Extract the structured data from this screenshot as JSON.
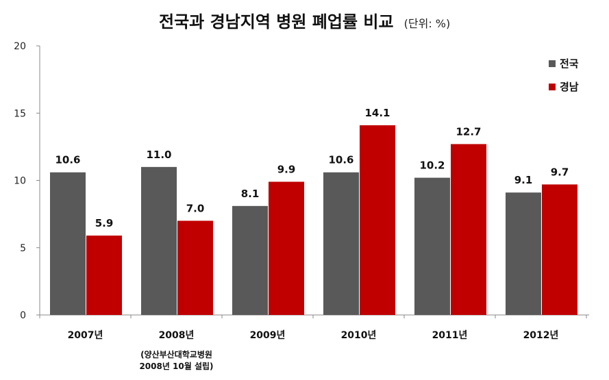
{
  "chart_data": {
    "type": "bar",
    "title": "전국과 경남지역 병원 폐업률 비교",
    "subtitle": "(단위: %)",
    "categories": [
      "2007년",
      "2008년",
      "2009년",
      "2010년",
      "2011년",
      "2012년"
    ],
    "series": [
      {
        "name": "전국",
        "color": "#595959",
        "values": [
          10.6,
          11.0,
          8.1,
          10.6,
          10.2,
          9.1
        ]
      },
      {
        "name": "경남",
        "color": "#C00000",
        "values": [
          5.9,
          7.0,
          9.9,
          14.1,
          12.7,
          9.7
        ]
      }
    ],
    "ylim": [
      0,
      20
    ],
    "yticks": [
      "0",
      "5",
      "10",
      "15",
      "20"
    ],
    "grid": false,
    "legend": "top-right",
    "annotations": [
      {
        "category": "2008년",
        "lines": [
          "(양산부산대학교병원",
          "2008년 10월 설립)"
        ]
      }
    ]
  }
}
